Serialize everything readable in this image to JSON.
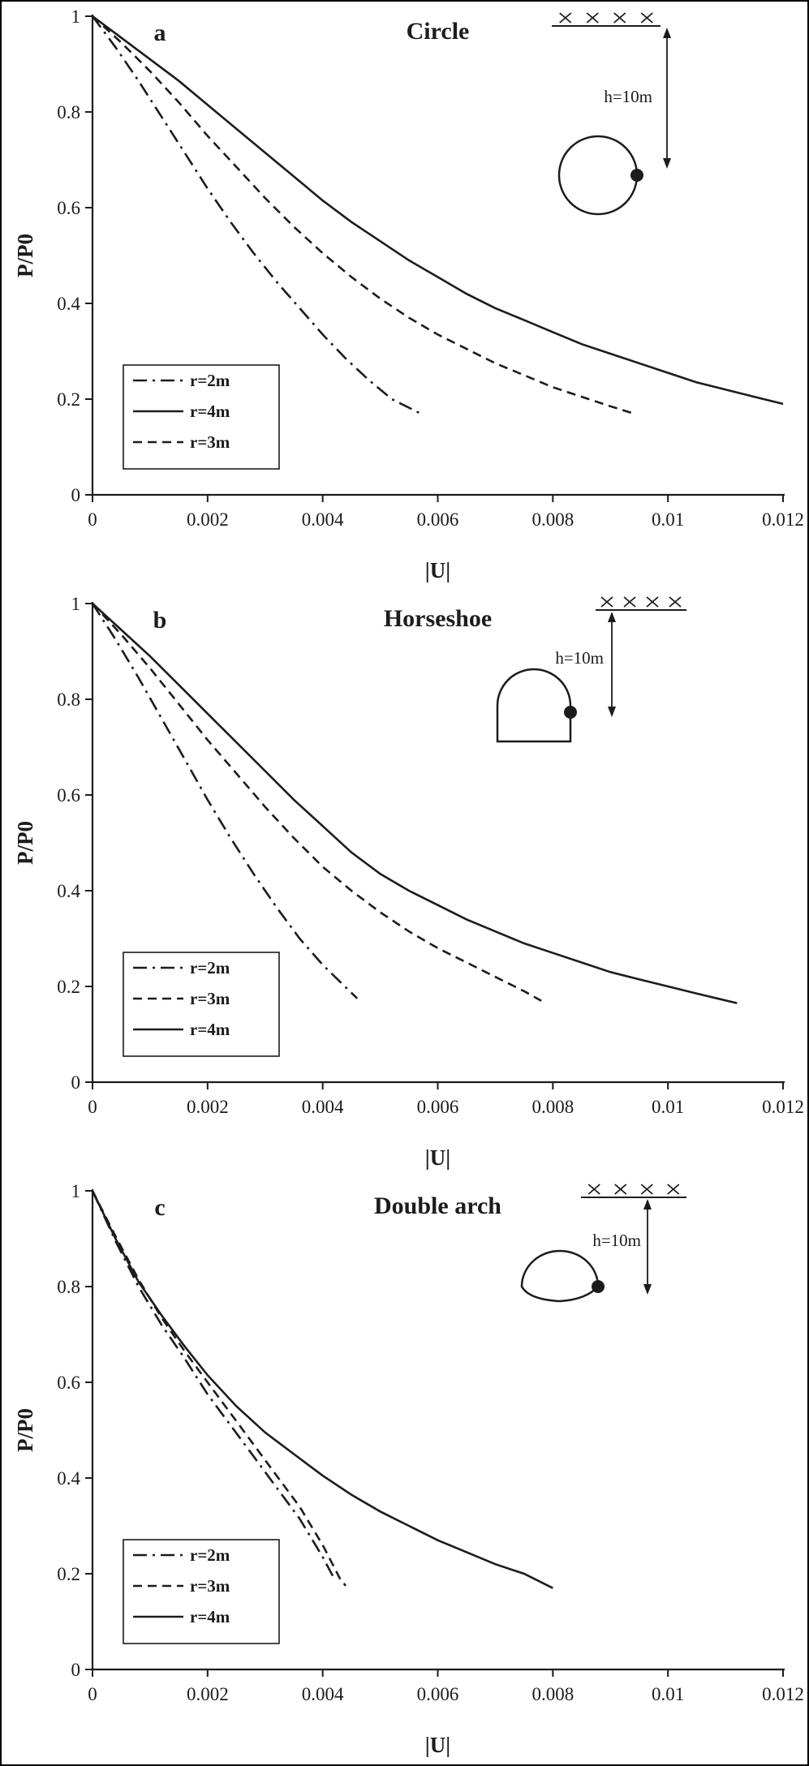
{
  "style": {
    "ink": "#1c1c1c",
    "background": "#ffffff"
  },
  "chart_data": [
    {
      "type": "line",
      "panel_label": "a",
      "title": "Circle",
      "xlabel": "|U|",
      "ylabel": "P/P0",
      "xlim": [
        0,
        0.012
      ],
      "ylim": [
        0,
        1
      ],
      "grid": false,
      "xticks": [
        0,
        0.002,
        0.004,
        0.006,
        0.008,
        0.01,
        0.012
      ],
      "xtick_labels": [
        "0",
        "0.002",
        "0.004",
        "0.006",
        "0.008",
        "0.01",
        "0.012"
      ],
      "yticks": [
        0,
        0.2,
        0.4,
        0.6,
        0.8,
        1
      ],
      "ytick_labels": [
        "0",
        "0.2",
        "0.4",
        "0.6",
        "0.8",
        "1"
      ],
      "legend": {
        "position": "lower-left",
        "entries": [
          "r=2m",
          "r=4m",
          "r=3m"
        ]
      },
      "inset": {
        "shape": "circle",
        "icon": "circle-tunnel-icon",
        "ground_icon": "ground-surface-hatch-icon",
        "marker_icon": "measurement-point-dot",
        "depth_label": "h=10m"
      },
      "series": [
        {
          "name": "r=2m",
          "style": "dash-dot",
          "points": [
            [
              0,
              1
            ],
            [
              0.0004,
              0.935
            ],
            [
              0.0008,
              0.865
            ],
            [
              0.0012,
              0.79
            ],
            [
              0.0016,
              0.715
            ],
            [
              0.002,
              0.64
            ],
            [
              0.0024,
              0.57
            ],
            [
              0.0028,
              0.505
            ],
            [
              0.0032,
              0.445
            ],
            [
              0.0036,
              0.39
            ],
            [
              0.004,
              0.335
            ],
            [
              0.0044,
              0.285
            ],
            [
              0.0048,
              0.24
            ],
            [
              0.0052,
              0.2
            ],
            [
              0.0057,
              0.17
            ]
          ]
        },
        {
          "name": "r=4m",
          "style": "solid",
          "points": [
            [
              0,
              1
            ],
            [
              0.0005,
              0.955
            ],
            [
              0.001,
              0.91
            ],
            [
              0.0015,
              0.865
            ],
            [
              0.002,
              0.815
            ],
            [
              0.0025,
              0.765
            ],
            [
              0.003,
              0.715
            ],
            [
              0.0035,
              0.665
            ],
            [
              0.004,
              0.615
            ],
            [
              0.0045,
              0.57
            ],
            [
              0.005,
              0.53
            ],
            [
              0.0055,
              0.49
            ],
            [
              0.006,
              0.455
            ],
            [
              0.0065,
              0.42
            ],
            [
              0.007,
              0.39
            ],
            [
              0.0075,
              0.365
            ],
            [
              0.008,
              0.34
            ],
            [
              0.0085,
              0.315
            ],
            [
              0.009,
              0.295
            ],
            [
              0.0095,
              0.275
            ],
            [
              0.01,
              0.255
            ],
            [
              0.0105,
              0.235
            ],
            [
              0.011,
              0.22
            ],
            [
              0.0115,
              0.205
            ],
            [
              0.012,
              0.19
            ]
          ]
        },
        {
          "name": "r=3m",
          "style": "dashed",
          "points": [
            [
              0,
              1
            ],
            [
              0.0005,
              0.945
            ],
            [
              0.001,
              0.885
            ],
            [
              0.0015,
              0.82
            ],
            [
              0.002,
              0.75
            ],
            [
              0.0025,
              0.685
            ],
            [
              0.003,
              0.62
            ],
            [
              0.0035,
              0.56
            ],
            [
              0.004,
              0.505
            ],
            [
              0.0045,
              0.455
            ],
            [
              0.005,
              0.41
            ],
            [
              0.0055,
              0.37
            ],
            [
              0.006,
              0.335
            ],
            [
              0.0065,
              0.305
            ],
            [
              0.007,
              0.275
            ],
            [
              0.0075,
              0.25
            ],
            [
              0.008,
              0.225
            ],
            [
              0.0085,
              0.205
            ],
            [
              0.009,
              0.185
            ],
            [
              0.0094,
              0.17
            ]
          ]
        }
      ]
    },
    {
      "type": "line",
      "panel_label": "b",
      "title": "Horseshoe",
      "xlabel": "|U|",
      "ylabel": "P/P0",
      "xlim": [
        0,
        0.012
      ],
      "ylim": [
        0,
        1
      ],
      "grid": false,
      "xticks": [
        0,
        0.002,
        0.004,
        0.006,
        0.008,
        0.01,
        0.012
      ],
      "xtick_labels": [
        "0",
        "0.002",
        "0.004",
        "0.006",
        "0.008",
        "0.01",
        "0.012"
      ],
      "yticks": [
        0,
        0.2,
        0.4,
        0.6,
        0.8,
        1
      ],
      "ytick_labels": [
        "0",
        "0.2",
        "0.4",
        "0.6",
        "0.8",
        "1"
      ],
      "legend": {
        "position": "lower-left",
        "entries": [
          "r=2m",
          "r=3m",
          "r=4m"
        ]
      },
      "inset": {
        "shape": "horseshoe",
        "icon": "horseshoe-tunnel-icon",
        "ground_icon": "ground-surface-hatch-icon",
        "marker_icon": "measurement-point-dot",
        "depth_label": "h=10m"
      },
      "series": [
        {
          "name": "r=2m",
          "style": "dash-dot",
          "points": [
            [
              0,
              1
            ],
            [
              0.0004,
              0.925
            ],
            [
              0.0008,
              0.845
            ],
            [
              0.0012,
              0.76
            ],
            [
              0.0016,
              0.675
            ],
            [
              0.002,
              0.59
            ],
            [
              0.0024,
              0.51
            ],
            [
              0.0028,
              0.435
            ],
            [
              0.0032,
              0.365
            ],
            [
              0.0036,
              0.3
            ],
            [
              0.004,
              0.245
            ],
            [
              0.0043,
              0.21
            ],
            [
              0.0046,
              0.175
            ]
          ]
        },
        {
          "name": "r=3m",
          "style": "dashed",
          "points": [
            [
              0,
              1
            ],
            [
              0.0005,
              0.935
            ],
            [
              0.001,
              0.865
            ],
            [
              0.0015,
              0.79
            ],
            [
              0.002,
              0.715
            ],
            [
              0.0025,
              0.645
            ],
            [
              0.003,
              0.575
            ],
            [
              0.0035,
              0.51
            ],
            [
              0.004,
              0.45
            ],
            [
              0.0045,
              0.4
            ],
            [
              0.005,
              0.355
            ],
            [
              0.0055,
              0.315
            ],
            [
              0.006,
              0.28
            ],
            [
              0.0065,
              0.25
            ],
            [
              0.007,
              0.22
            ],
            [
              0.0075,
              0.19
            ],
            [
              0.0078,
              0.17
            ]
          ]
        },
        {
          "name": "r=4m",
          "style": "solid",
          "points": [
            [
              0,
              1
            ],
            [
              0.0005,
              0.945
            ],
            [
              0.001,
              0.89
            ],
            [
              0.0015,
              0.83
            ],
            [
              0.002,
              0.77
            ],
            [
              0.0025,
              0.71
            ],
            [
              0.003,
              0.65
            ],
            [
              0.0035,
              0.59
            ],
            [
              0.004,
              0.535
            ],
            [
              0.0045,
              0.48
            ],
            [
              0.005,
              0.435
            ],
            [
              0.0055,
              0.4
            ],
            [
              0.006,
              0.37
            ],
            [
              0.0065,
              0.34
            ],
            [
              0.007,
              0.315
            ],
            [
              0.0075,
              0.29
            ],
            [
              0.008,
              0.27
            ],
            [
              0.0085,
              0.25
            ],
            [
              0.009,
              0.23
            ],
            [
              0.0095,
              0.215
            ],
            [
              0.01,
              0.2
            ],
            [
              0.0105,
              0.185
            ],
            [
              0.0112,
              0.165
            ]
          ]
        }
      ]
    },
    {
      "type": "line",
      "panel_label": "c",
      "title": "Double arch",
      "xlabel": "|U|",
      "ylabel": "P/P0",
      "xlim": [
        0,
        0.012
      ],
      "ylim": [
        0,
        1
      ],
      "grid": false,
      "xticks": [
        0,
        0.002,
        0.004,
        0.006,
        0.008,
        0.01,
        0.012
      ],
      "xtick_labels": [
        "0",
        "0.002",
        "0.004",
        "0.006",
        "0.008",
        "0.01",
        "0.012"
      ],
      "yticks": [
        0,
        0.2,
        0.4,
        0.6,
        0.8,
        1
      ],
      "ytick_labels": [
        "0",
        "0.2",
        "0.4",
        "0.6",
        "0.8",
        "1"
      ],
      "legend": {
        "position": "lower-left",
        "entries": [
          "r=2m",
          "r=3m",
          "r=4m"
        ]
      },
      "inset": {
        "shape": "double-arch",
        "icon": "double-arch-tunnel-icon",
        "ground_icon": "ground-surface-hatch-icon",
        "marker_icon": "measurement-point-dot",
        "depth_label": "h=10m"
      },
      "series": [
        {
          "name": "r=2m",
          "style": "dash-dot",
          "points": [
            [
              0,
              1
            ],
            [
              0.0004,
              0.895
            ],
            [
              0.0008,
              0.8
            ],
            [
              0.0012,
              0.72
            ],
            [
              0.0016,
              0.65
            ],
            [
              0.002,
              0.575
            ],
            [
              0.0024,
              0.51
            ],
            [
              0.0028,
              0.445
            ],
            [
              0.0032,
              0.38
            ],
            [
              0.0036,
              0.315
            ],
            [
              0.004,
              0.235
            ],
            [
              0.0042,
              0.19
            ]
          ]
        },
        {
          "name": "r=3m",
          "style": "dashed",
          "points": [
            [
              0,
              1
            ],
            [
              0.0004,
              0.905
            ],
            [
              0.0008,
              0.815
            ],
            [
              0.0012,
              0.735
            ],
            [
              0.0016,
              0.665
            ],
            [
              0.002,
              0.6
            ],
            [
              0.0024,
              0.535
            ],
            [
              0.0028,
              0.47
            ],
            [
              0.0032,
              0.405
            ],
            [
              0.0036,
              0.34
            ],
            [
              0.004,
              0.26
            ],
            [
              0.0043,
              0.19
            ],
            [
              0.0044,
              0.175
            ]
          ]
        },
        {
          "name": "r=4m",
          "style": "solid",
          "points": [
            [
              0,
              1
            ],
            [
              0.0004,
              0.9
            ],
            [
              0.0008,
              0.81
            ],
            [
              0.0012,
              0.74
            ],
            [
              0.0016,
              0.675
            ],
            [
              0.002,
              0.615
            ],
            [
              0.0025,
              0.55
            ],
            [
              0.003,
              0.495
            ],
            [
              0.0035,
              0.45
            ],
            [
              0.004,
              0.405
            ],
            [
              0.0045,
              0.365
            ],
            [
              0.005,
              0.33
            ],
            [
              0.0055,
              0.3
            ],
            [
              0.006,
              0.27
            ],
            [
              0.0065,
              0.245
            ],
            [
              0.007,
              0.22
            ],
            [
              0.0075,
              0.2
            ],
            [
              0.008,
              0.17
            ]
          ]
        }
      ]
    }
  ]
}
